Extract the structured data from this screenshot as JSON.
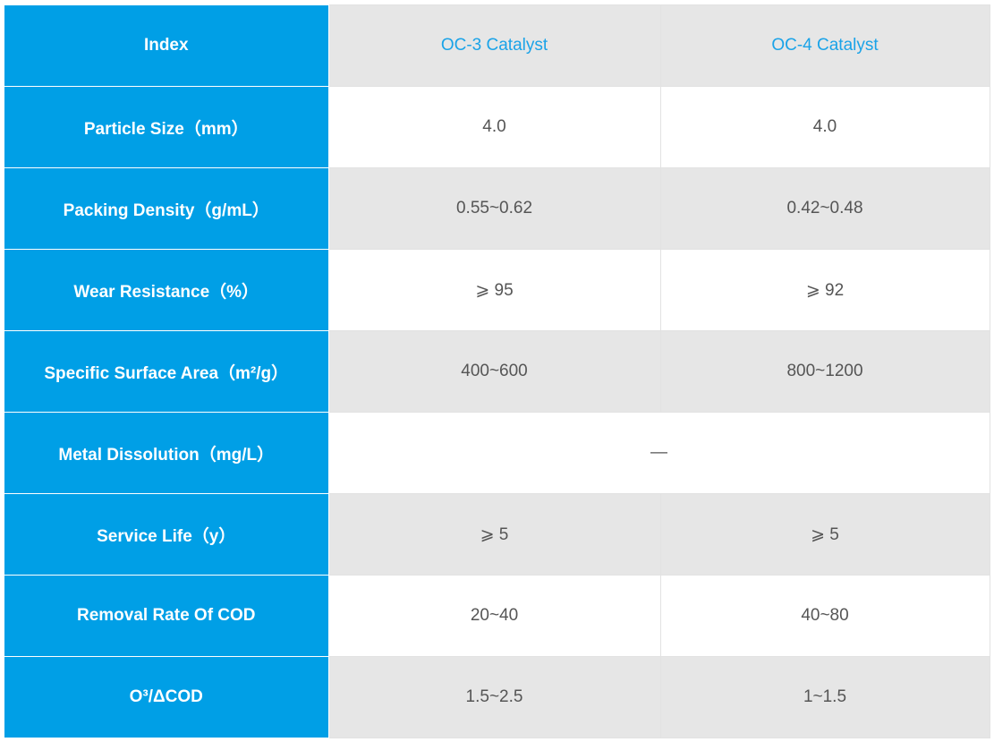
{
  "colors": {
    "label_bg": "#009fe6",
    "header_text": "#1aa3e8",
    "stripe": "#e6e6e6",
    "value_text": "#555555"
  },
  "header": {
    "index": "Index",
    "col1": "OC-3 Catalyst",
    "col2": "OC-4 Catalyst"
  },
  "rows": [
    {
      "label": "Particle Size（mm）",
      "oc3": "4.0",
      "oc4": "4.0"
    },
    {
      "label": "Packing Density（g/mL）",
      "oc3": "0.55~0.62",
      "oc4": "0.42~0.48"
    },
    {
      "label": "Wear Resistance（%）",
      "oc3": "⩾ 95",
      "oc4": "⩾ 92"
    },
    {
      "label": "Specific Surface Area（m²/g）",
      "oc3": "400~600",
      "oc4": "800~1200"
    },
    {
      "label": "Metal Dissolution（mg/L）",
      "merged": "—"
    },
    {
      "label": "Service Life（y）",
      "oc3": "⩾ 5",
      "oc4": "⩾ 5"
    },
    {
      "label": "Removal Rate Of COD",
      "oc3": "20~40",
      "oc4": "40~80"
    },
    {
      "label": "O³/ΔCOD",
      "oc3": "1.5~2.5",
      "oc4": "1~1.5"
    }
  ]
}
